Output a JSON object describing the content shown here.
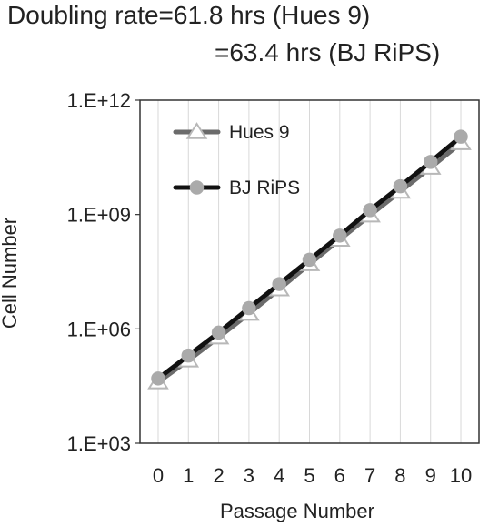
{
  "chart_data": {
    "type": "line",
    "title_lines": [
      "Doubling rate=61.8 hrs (Hues 9)",
      "=63.4 hrs (BJ RiPS)"
    ],
    "xlabel": "Passage Number",
    "ylabel": "Cell Number",
    "x": [
      0,
      1,
      2,
      3,
      4,
      5,
      6,
      7,
      8,
      9,
      10
    ],
    "x_tick_labels": [
      "0",
      "1",
      "2",
      "3",
      "4",
      "5",
      "6",
      "7",
      "8",
      "9",
      "10"
    ],
    "y_scale": "log10",
    "ylim": [
      1000,
      1000000000000
    ],
    "y_ticks": [
      1000,
      1000000,
      1000000000,
      1000000000000
    ],
    "y_tick_labels": [
      "1.E+03",
      "1.E+06",
      "1.E+09",
      "1.E+12"
    ],
    "grid": "vertical",
    "legend_position": "top-left",
    "series": [
      {
        "name": "Hues 9",
        "values": [
          40000,
          150000,
          600000,
          2500000,
          11000000,
          50000000,
          220000000,
          950000000,
          4000000000,
          17000000000,
          75000000000
        ],
        "line_color": "#6b6b6b",
        "marker": "triangle",
        "marker_fill": "#ffffff",
        "marker_stroke": "#b8b8b8"
      },
      {
        "name": "BJ RiPS",
        "values": [
          50000,
          200000,
          800000,
          3500000,
          15000000,
          65000000,
          280000000,
          1300000000,
          5500000000,
          24000000000,
          110000000000
        ],
        "line_color": "#111111",
        "marker": "circle",
        "marker_fill": "#aaaaaa",
        "marker_stroke": "#aaaaaa"
      }
    ]
  }
}
